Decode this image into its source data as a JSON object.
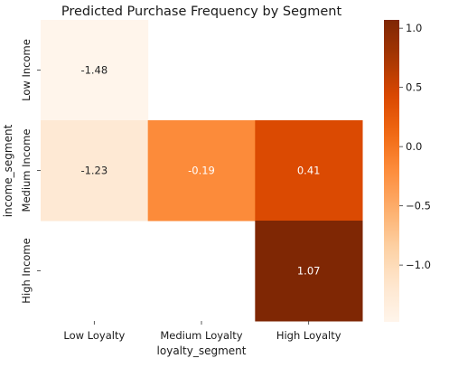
{
  "chart_data": {
    "type": "heatmap",
    "title": "Predicted Purchase Frequency by Segment",
    "xlabel": "loyalty_segment",
    "ylabel": "income_segment",
    "x_categories": [
      "Low Loyalty",
      "Medium Loyalty",
      "High Loyalty"
    ],
    "y_categories": [
      "Low Income",
      "Medium Income",
      "High Income"
    ],
    "values": [
      [
        -1.48,
        null,
        null
      ],
      [
        -1.23,
        -0.19,
        0.41
      ],
      [
        null,
        null,
        1.07
      ]
    ],
    "value_labels": [
      [
        "-1.48",
        "",
        ""
      ],
      [
        "-1.23",
        "-0.19",
        "0.41"
      ],
      [
        "",
        "",
        "1.07"
      ]
    ],
    "colormap": "Oranges",
    "vmin": -1.48,
    "vmax": 1.07,
    "colorbar_ticks": [
      1.0,
      0.5,
      0.0,
      -0.5,
      -1.0
    ],
    "colorbar_tick_labels": [
      "1.0",
      "0.5",
      "0.0",
      "−0.5",
      "−1.0"
    ],
    "grid": false,
    "legend": "colorbar-right"
  }
}
